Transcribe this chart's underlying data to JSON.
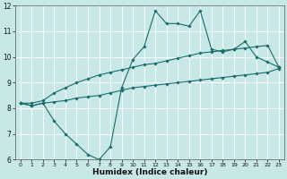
{
  "xlabel": "Humidex (Indice chaleur)",
  "x": [
    0,
    1,
    2,
    3,
    4,
    5,
    6,
    7,
    8,
    9,
    10,
    11,
    12,
    13,
    14,
    15,
    16,
    17,
    18,
    19,
    20,
    21,
    22,
    23
  ],
  "y_main": [
    8.2,
    8.1,
    8.2,
    7.5,
    7.0,
    6.6,
    6.2,
    6.0,
    6.5,
    8.8,
    9.9,
    10.4,
    11.8,
    11.3,
    11.3,
    11.2,
    11.8,
    10.3,
    10.2,
    10.3,
    10.6,
    10.0,
    9.8,
    9.6
  ],
  "y_low": [
    8.2,
    8.1,
    8.2,
    8.25,
    8.3,
    8.4,
    8.45,
    8.5,
    8.6,
    8.7,
    8.8,
    8.85,
    8.9,
    8.95,
    9.0,
    9.05,
    9.1,
    9.15,
    9.2,
    9.25,
    9.3,
    9.35,
    9.4,
    9.55
  ],
  "y_high": [
    8.2,
    8.2,
    8.3,
    8.6,
    8.8,
    9.0,
    9.15,
    9.3,
    9.4,
    9.5,
    9.6,
    9.7,
    9.75,
    9.85,
    9.95,
    10.05,
    10.15,
    10.2,
    10.25,
    10.3,
    10.35,
    10.4,
    10.45,
    9.6
  ],
  "bg_color": "#c8e8e8",
  "line_color": "#1a6b6b",
  "grid_color": "#ffffff",
  "ylim": [
    6,
    12
  ],
  "xlim_min": -0.5,
  "xlim_max": 23.5,
  "yticks": [
    6,
    7,
    8,
    9,
    10,
    11,
    12
  ],
  "xticks": [
    0,
    1,
    2,
    3,
    4,
    5,
    6,
    7,
    8,
    9,
    10,
    11,
    12,
    13,
    14,
    15,
    16,
    17,
    18,
    19,
    20,
    21,
    22,
    23
  ]
}
